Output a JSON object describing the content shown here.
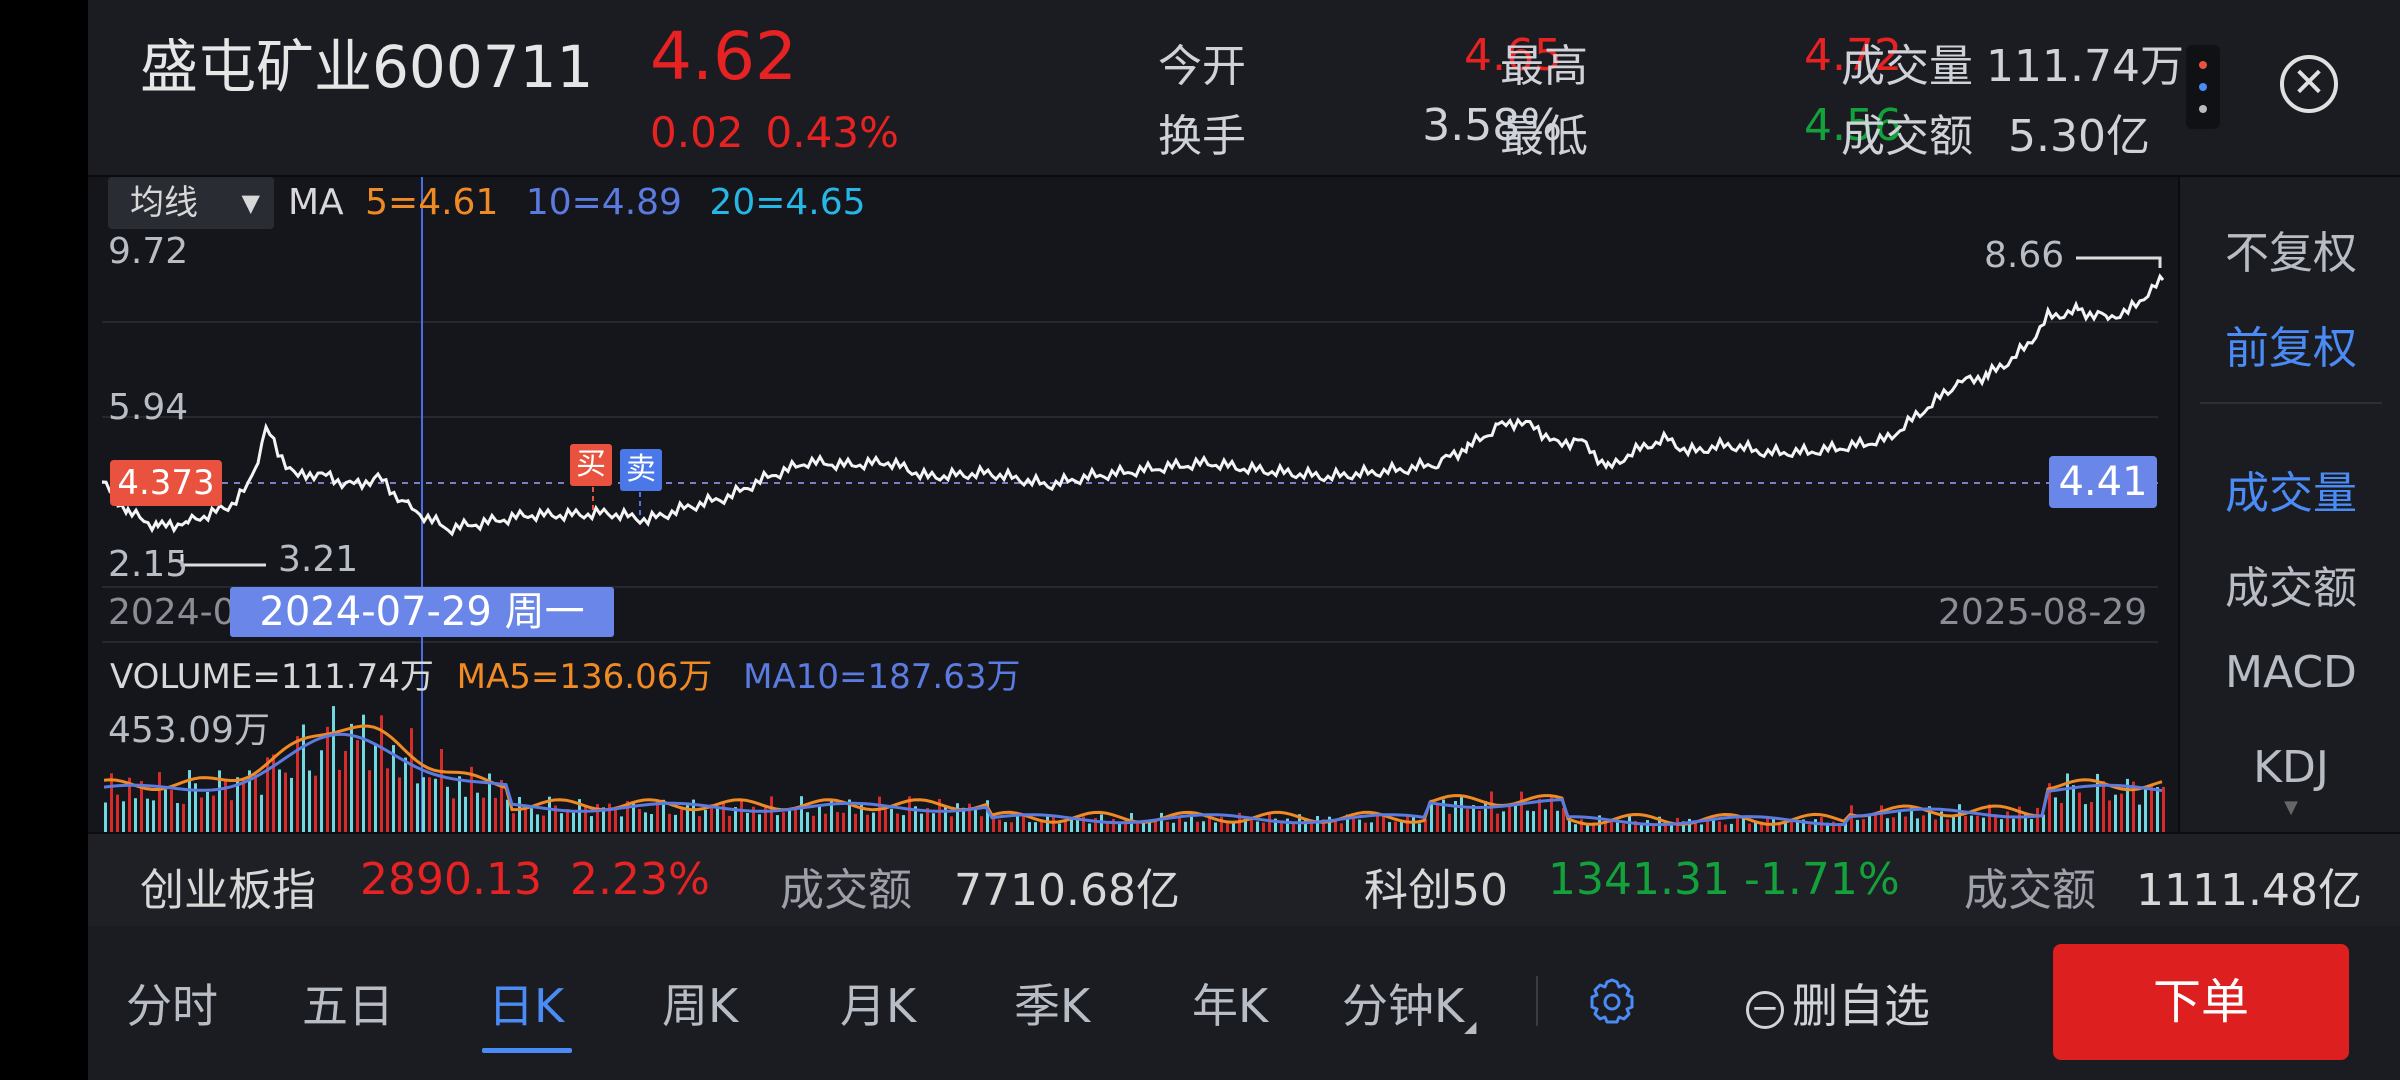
{
  "stock": {
    "name": "盛屯矿业",
    "code": "600711",
    "price": "4.62",
    "change": "0.02",
    "change_pct": "0.43%"
  },
  "quote": {
    "open_label": "今开",
    "open": "4.65",
    "high_label": "最高",
    "high": "4.72",
    "volume_label": "成交量",
    "volume": "111.74万",
    "turnover_label": "换手",
    "turnover": "3.58%",
    "low_label": "最低",
    "low": "4.56",
    "amount_label": "成交额",
    "amount": "5.30亿"
  },
  "chart": {
    "mode_label": "均线",
    "ma_label": "MA",
    "ma5": "5=4.61",
    "ma10": "10=4.89",
    "ma20": "20=4.65",
    "ymax": "9.72",
    "ymid": "5.94",
    "ymin": "2.15",
    "hi_label": "8.66",
    "lo_label": "3.21",
    "left_tag": "4.373",
    "right_tag": "4.41",
    "buy_label": "买",
    "sell_label": "卖",
    "start_date": "2024-0",
    "end_date": "2025-08-29",
    "crosshair_date": "2024-07-29 周一",
    "volume_text": "VOLUME=111.74万",
    "vol_ma5": "MA5=136.06万",
    "vol_ma10": "MA10=187.63万",
    "vol_max": "453.09万"
  },
  "right_panel": {
    "no_adjust": "不复权",
    "fwd_adjust": "前复权",
    "volume": "成交量",
    "amount": "成交额",
    "macd": "MACD",
    "kdj": "KDJ"
  },
  "indices": {
    "i1_name": "创业板指",
    "i1_value": "2890.13",
    "i1_pct": "2.23%",
    "i1_amt_label": "成交额",
    "i1_amt": "7710.68亿",
    "i2_name": "科创50",
    "i2_value": "1341.31",
    "i2_pct": "-1.71%",
    "i2_amt_label": "成交额",
    "i2_amt": "1111.48亿"
  },
  "tabs": {
    "t1": "分时",
    "t2": "五日",
    "t3": "日K",
    "t4": "周K",
    "t5": "月K",
    "t6": "季K",
    "t7": "年K",
    "t8": "分钟K",
    "watch": "删自选",
    "order": "下单"
  },
  "colors": {
    "up": "#e62222",
    "down": "#13a13b",
    "accent": "#4b8bf5",
    "ma5": "#f08a24",
    "ma10": "#5b7be0",
    "ma20": "#26b7e6"
  },
  "icons": {
    "settings": "gear-icon",
    "close": "close-icon",
    "menu": "more-dots-icon",
    "dropdown": "triangle-down-icon"
  }
}
